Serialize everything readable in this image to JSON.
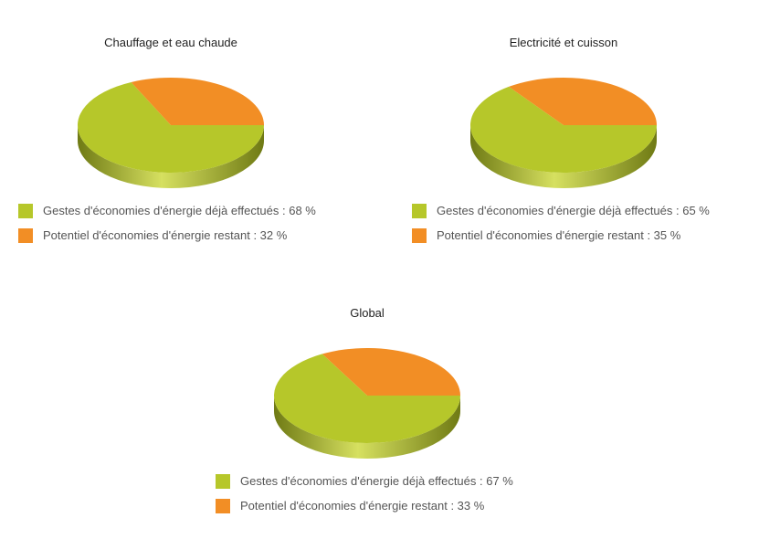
{
  "colors": {
    "green": "#B6C72A",
    "green_side_dark": "#6F7A14",
    "green_side_light": "#D6E060",
    "orange": "#F28E25"
  },
  "chart_data": [
    {
      "type": "pie",
      "title": "Chauffage et eau chaude",
      "legend_position": "bottom",
      "slices": [
        {
          "label": "Gestes d'économies d'énergie déjà effectués : 68 %",
          "value": 68,
          "color": "#B6C72A"
        },
        {
          "label": "Potentiel d'économies d'énergie restant : 32 %",
          "value": 32,
          "color": "#F28E25"
        }
      ]
    },
    {
      "type": "pie",
      "title": "Electricité et cuisson",
      "legend_position": "bottom",
      "slices": [
        {
          "label": "Gestes d'économies d'énergie déjà effectués : 65 %",
          "value": 65,
          "color": "#B6C72A"
        },
        {
          "label": "Potentiel d'économies d'énergie restant : 35 %",
          "value": 35,
          "color": "#F28E25"
        }
      ]
    },
    {
      "type": "pie",
      "title": "Global",
      "legend_position": "bottom",
      "slices": [
        {
          "label": "Gestes d'économies d'énergie déjà effectués : 67 %",
          "value": 67,
          "color": "#B6C72A"
        },
        {
          "label": "Potentiel d'économies d'énergie restant : 33 %",
          "value": 33,
          "color": "#F28E25"
        }
      ]
    }
  ]
}
